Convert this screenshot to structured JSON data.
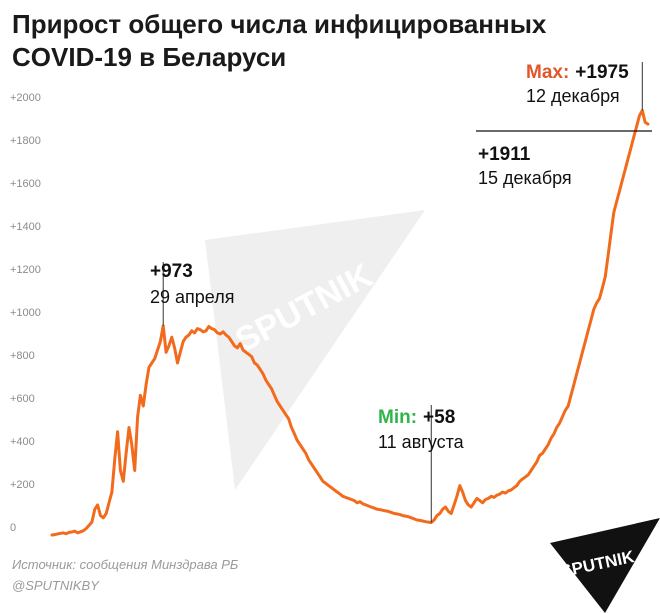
{
  "header": {
    "title_line1": "Прирост общего числа инфицированных",
    "title_line2": "COVID-19 в Беларуси"
  },
  "footer": {
    "source": "Источник: сообщения Минздрава РБ",
    "handle": "@SPUTNIKBY"
  },
  "brand": {
    "logo_text": "SPUTNIK",
    "watermark_text": "SPUTNIK",
    "line_color": "#f26b1d",
    "max_color": "#e0552b",
    "min_color": "#2fb54a"
  },
  "annotations": {
    "peak_value": "+973",
    "peak_date": "29 апреля",
    "min_label": "Min:",
    "min_value": "+58",
    "min_date": "11 августа",
    "max_label": "Max:",
    "max_value": "+1975",
    "max_date": "12 декабря",
    "last_value": "+1911",
    "last_date": "15 декабря"
  },
  "chart_data": {
    "type": "line",
    "title": "Прирост общего числа инфицированных COVID-19 в Беларуси",
    "xlabel": "",
    "ylabel": "",
    "ylim": [
      0,
      2000
    ],
    "y_ticks": [
      "0",
      "+200",
      "+400",
      "+600",
      "+800",
      "+1000",
      "+1200",
      "+1400",
      "+1600",
      "+1800",
      "+2000"
    ],
    "grid": false,
    "series": [
      {
        "values": [
          0,
          2,
          5,
          8,
          10,
          6,
          12,
          14,
          18,
          10,
          15,
          20,
          30,
          45,
          60,
          120,
          140,
          90,
          80,
          100,
          150,
          200,
          350,
          480,
          300,
          250,
          380,
          500,
          420,
          300,
          550,
          650,
          600,
          700,
          780,
          800,
          820,
          860,
          900,
          973,
          850,
          880,
          920,
          870,
          800,
          850,
          900,
          920,
          930,
          950,
          940,
          960,
          955,
          945,
          950,
          970,
          960,
          955,
          940,
          935,
          945,
          930,
          920,
          900,
          880,
          870,
          890,
          860,
          850,
          840,
          830,
          800,
          790,
          770,
          750,
          720,
          700,
          680,
          650,
          620,
          600,
          580,
          560,
          540,
          500,
          470,
          440,
          420,
          400,
          380,
          350,
          330,
          310,
          290,
          270,
          250,
          240,
          230,
          220,
          210,
          200,
          190,
          180,
          175,
          170,
          165,
          160,
          150,
          155,
          145,
          140,
          135,
          130,
          125,
          120,
          118,
          115,
          112,
          110,
          105,
          100,
          98,
          95,
          90,
          88,
          85,
          80,
          75,
          70,
          68,
          65,
          62,
          60,
          58,
          70,
          90,
          100,
          120,
          130,
          110,
          100,
          140,
          180,
          230,
          200,
          160,
          140,
          130,
          150,
          170,
          160,
          150,
          165,
          170,
          180,
          175,
          185,
          190,
          200,
          195,
          205,
          210,
          220,
          230,
          250,
          260,
          270,
          280,
          300,
          320,
          340,
          370,
          380,
          400,
          420,
          450,
          470,
          500,
          520,
          550,
          580,
          600,
          650,
          700,
          750,
          800,
          850,
          900,
          950,
          1000,
          1050,
          1080,
          1100,
          1150,
          1200,
          1300,
          1400,
          1500,
          1550,
          1600,
          1650,
          1700,
          1750,
          1800,
          1850,
          1900,
          1950,
          1975,
          1920,
          1911
        ]
      }
    ],
    "annotations": [
      {
        "date": "29 апреля",
        "value": 973
      },
      {
        "date": "11 августа",
        "value": 58
      },
      {
        "date": "12 декабря",
        "value": 1975
      },
      {
        "date": "15 декабря",
        "value": 1911
      }
    ]
  }
}
